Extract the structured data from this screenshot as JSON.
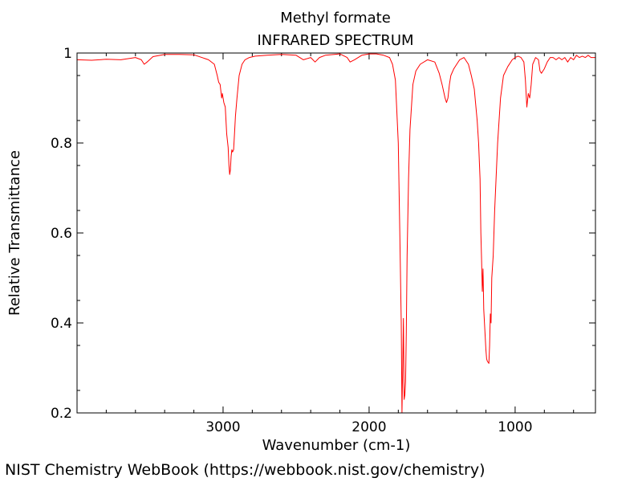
{
  "chart_data": {
    "type": "line",
    "title": "Methyl formate",
    "subtitle": "INFRARED SPECTRUM",
    "xlabel": "Wavenumber (cm-1)",
    "ylabel": "Relative Transmittance",
    "xlim": [
      4000,
      450
    ],
    "ylim": [
      0.2,
      1.0
    ],
    "x_reversed": true,
    "x_ticks": [
      3000,
      2000,
      1000
    ],
    "x_tick_labels": [
      "3000",
      "2000",
      "1000"
    ],
    "y_ticks": [
      0.2,
      0.4,
      0.6,
      0.8,
      1.0
    ],
    "y_tick_labels": [
      "0.2",
      "0.4",
      "0.6",
      "0.8",
      "1"
    ],
    "grid": false,
    "series": [
      {
        "color": "#ff0000",
        "x": [
          4000,
          3900,
          3800,
          3700,
          3600,
          3560,
          3540,
          3520,
          3480,
          3400,
          3300,
          3200,
          3100,
          3060,
          3040,
          3030,
          3020,
          3010,
          3005,
          2995,
          2985,
          2975,
          2965,
          2960,
          2955,
          2950,
          2945,
          2940,
          2935,
          2928,
          2922,
          2915,
          2905,
          2890,
          2870,
          2850,
          2820,
          2780,
          2700,
          2600,
          2500,
          2450,
          2400,
          2370,
          2340,
          2300,
          2200,
          2150,
          2130,
          2100,
          2050,
          2000,
          1950,
          1900,
          1860,
          1840,
          1820,
          1800,
          1790,
          1780,
          1775,
          1770,
          1765,
          1760,
          1755,
          1750,
          1745,
          1740,
          1730,
          1720,
          1700,
          1680,
          1650,
          1600,
          1550,
          1520,
          1500,
          1480,
          1470,
          1460,
          1450,
          1440,
          1420,
          1400,
          1380,
          1350,
          1320,
          1300,
          1280,
          1260,
          1250,
          1240,
          1235,
          1230,
          1225,
          1220,
          1215,
          1210,
          1205,
          1200,
          1195,
          1190,
          1180,
          1175,
          1170,
          1165,
          1160,
          1150,
          1140,
          1120,
          1100,
          1080,
          1050,
          1020,
          1000,
          980,
          960,
          940,
          930,
          920,
          910,
          900,
          890,
          880,
          860,
          840,
          830,
          820,
          810,
          800,
          780,
          760,
          740,
          720,
          700,
          680,
          660,
          640,
          620,
          600,
          580,
          560,
          540,
          520,
          500,
          480,
          450
        ],
        "y": [
          0.985,
          0.984,
          0.986,
          0.985,
          0.99,
          0.985,
          0.975,
          0.98,
          0.992,
          0.997,
          0.997,
          0.996,
          0.985,
          0.975,
          0.95,
          0.935,
          0.93,
          0.9,
          0.91,
          0.89,
          0.88,
          0.82,
          0.79,
          0.75,
          0.73,
          0.74,
          0.77,
          0.785,
          0.78,
          0.785,
          0.82,
          0.86,
          0.9,
          0.95,
          0.975,
          0.985,
          0.99,
          0.993,
          0.995,
          0.997,
          0.995,
          0.985,
          0.99,
          0.98,
          0.99,
          0.995,
          0.998,
          0.99,
          0.98,
          0.985,
          0.995,
          0.998,
          0.998,
          0.995,
          0.99,
          0.975,
          0.94,
          0.8,
          0.6,
          0.4,
          0.2,
          0.3,
          0.41,
          0.23,
          0.24,
          0.27,
          0.38,
          0.55,
          0.72,
          0.83,
          0.93,
          0.96,
          0.975,
          0.985,
          0.98,
          0.955,
          0.93,
          0.9,
          0.89,
          0.9,
          0.93,
          0.95,
          0.965,
          0.975,
          0.985,
          0.99,
          0.975,
          0.95,
          0.92,
          0.85,
          0.8,
          0.72,
          0.6,
          0.54,
          0.47,
          0.52,
          0.43,
          0.4,
          0.37,
          0.34,
          0.32,
          0.315,
          0.31,
          0.35,
          0.42,
          0.4,
          0.5,
          0.55,
          0.65,
          0.8,
          0.9,
          0.95,
          0.97,
          0.985,
          0.99,
          0.993,
          0.99,
          0.98,
          0.94,
          0.88,
          0.91,
          0.9,
          0.93,
          0.975,
          0.99,
          0.985,
          0.96,
          0.955,
          0.96,
          0.965,
          0.98,
          0.99,
          0.99,
          0.985,
          0.99,
          0.985,
          0.99,
          0.98,
          0.99,
          0.985,
          0.995,
          0.99,
          0.993,
          0.99,
          0.995,
          0.99,
          0.99
        ]
      }
    ]
  },
  "footer": {
    "credit": "NIST Chemistry WebBook (https://webbook.nist.gov/chemistry)"
  }
}
